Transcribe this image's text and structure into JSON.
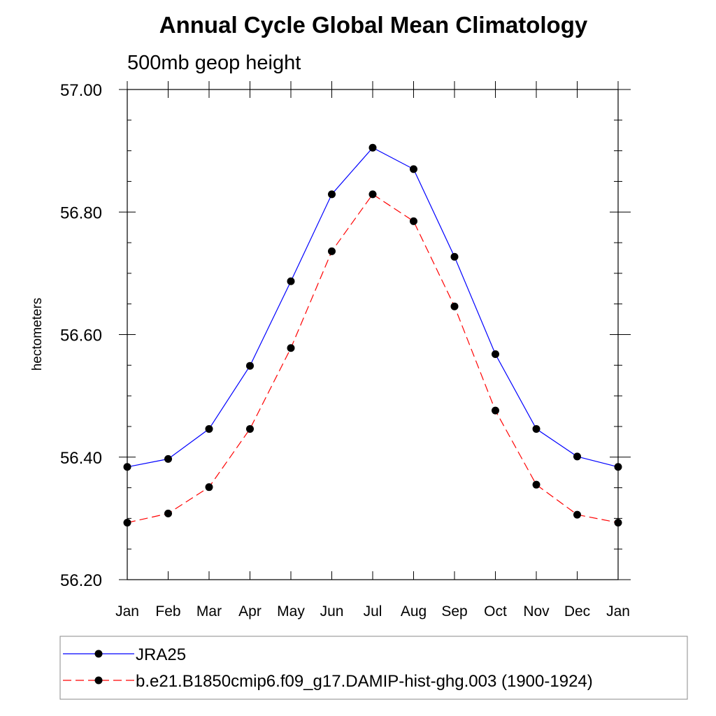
{
  "chart_data": {
    "type": "line",
    "title": "Annual Cycle Global Mean Climatology",
    "subtitle": "500mb geop height",
    "xlabel": "",
    "ylabel": "hectometers",
    "categories": [
      "Jan",
      "Feb",
      "Mar",
      "Apr",
      "May",
      "Jun",
      "Jul",
      "Aug",
      "Sep",
      "Oct",
      "Nov",
      "Dec",
      "Jan"
    ],
    "ylim": [
      56.2,
      57.0
    ],
    "yticks": [
      "56.20",
      "56.40",
      "56.60",
      "56.80",
      "57.00"
    ],
    "grid": false,
    "legend_position": "bottom",
    "series": [
      {
        "name": "JRA25",
        "color": "#0000ff",
        "dash": "solid",
        "marker": "filled-circle",
        "values": [
          56.384,
          56.397,
          56.446,
          56.549,
          56.687,
          56.829,
          56.905,
          56.87,
          56.727,
          56.568,
          56.446,
          56.401,
          56.384
        ]
      },
      {
        "name": "b.e21.B1850cmip6.f09_g17.DAMIP-hist-ghg.003 (1900-1924)",
        "color": "#ff0000",
        "dash": "dashed",
        "marker": "filled-circle",
        "values": [
          56.293,
          56.308,
          56.351,
          56.446,
          56.578,
          56.736,
          56.829,
          56.785,
          56.646,
          56.476,
          56.355,
          56.306,
          56.293
        ]
      }
    ]
  }
}
